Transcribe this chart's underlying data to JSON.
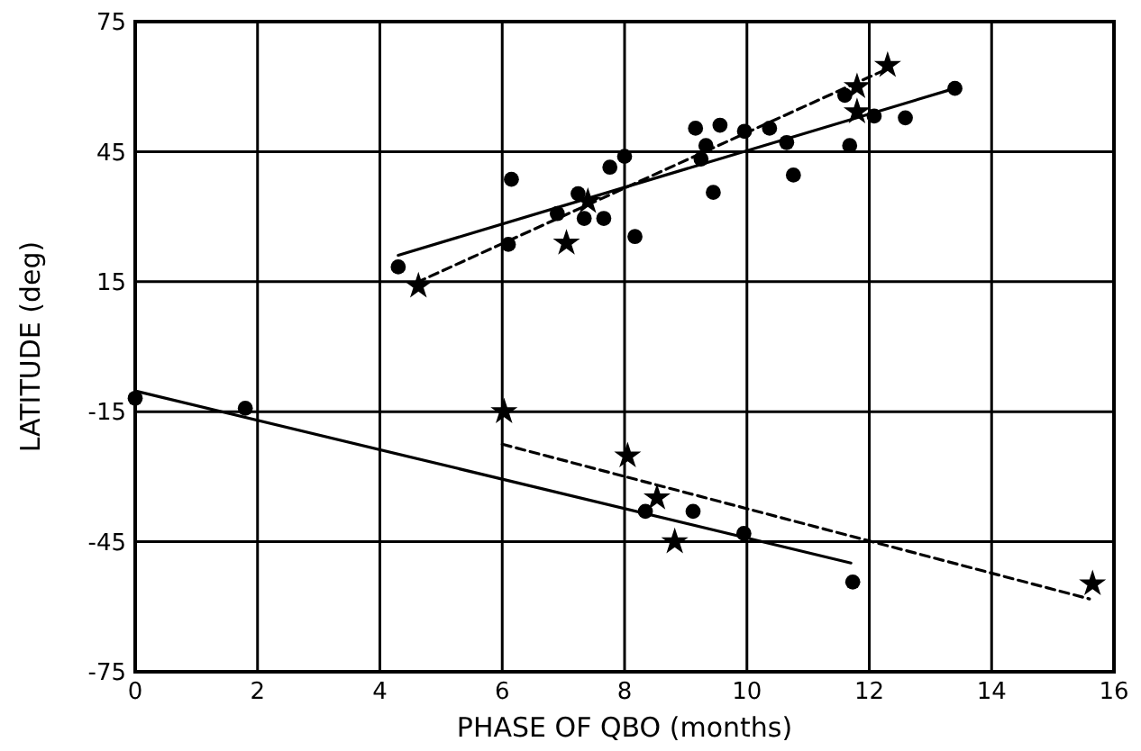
{
  "chart_data": {
    "type": "scatter",
    "xlabel": "PHASE OF QBO (months)",
    "ylabel": "LATITUDE (deg)",
    "xlim": [
      0,
      16
    ],
    "ylim": [
      -75,
      75
    ],
    "xticks": [
      0,
      2,
      4,
      6,
      8,
      10,
      12,
      14,
      16
    ],
    "yticks": [
      -75,
      -45,
      -15,
      15,
      45,
      75
    ],
    "grid": true,
    "series": [
      {
        "marker": "circle",
        "color": "#000000",
        "x": [
          4.3,
          6.15,
          6.1,
          6.9,
          7.24,
          7.34,
          7.66,
          7.76,
          8.0,
          8.17,
          9.16,
          9.56,
          9.33,
          9.25,
          9.45,
          9.96,
          10.37,
          10.65,
          10.76,
          11.68,
          11.6,
          12.08,
          12.59,
          13.4,
          0,
          1.8,
          8.34,
          9.12,
          9.95,
          11.73
        ],
        "values": [
          18.4,
          38.6,
          23.6,
          30.7,
          35.3,
          29.6,
          29.6,
          41.4,
          43.9,
          25.4,
          50.4,
          51.1,
          46.4,
          43.3,
          35.6,
          49.7,
          50.4,
          47.1,
          39.6,
          46.4,
          58,
          53.2,
          52.8,
          59.6,
          -11.9,
          -14.2,
          -38,
          -38,
          -43.1,
          -54.3
        ]
      },
      {
        "marker": "star",
        "color": "#000000",
        "x": [
          4.63,
          7.05,
          7.4,
          11.8,
          11.8,
          12.3,
          6.03,
          8.05,
          8.53,
          8.82,
          15.65
        ],
        "values": [
          14,
          23.9,
          33.5,
          60,
          54.2,
          64.9,
          -15,
          -25.2,
          -34.9,
          -45,
          -54.7
        ]
      },
      {
        "type": "line",
        "line_style": "solid",
        "color": "#000000",
        "x": [
          4.3,
          13.4
        ],
        "values": [
          21.1,
          59.6
        ]
      },
      {
        "type": "line",
        "line_style": "dashed",
        "color": "#000000",
        "x": [
          4.6,
          12.2
        ],
        "values": [
          14.8,
          63.5
        ]
      },
      {
        "type": "line",
        "line_style": "solid",
        "color": "#000000",
        "x": [
          0,
          11.7
        ],
        "values": [
          -10.2,
          -49.9
        ]
      },
      {
        "type": "line",
        "line_style": "dashed",
        "color": "#000000",
        "x": [
          6.0,
          15.6
        ],
        "values": [
          -22.5,
          -58.2
        ]
      }
    ]
  }
}
